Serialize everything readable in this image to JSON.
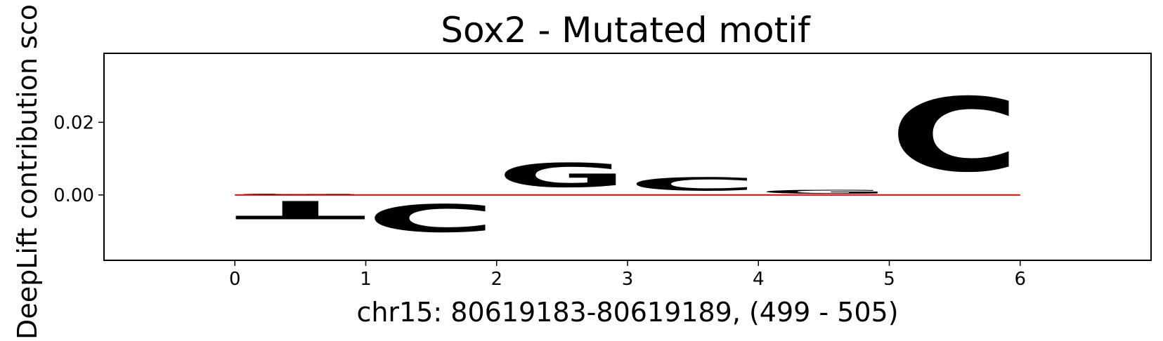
{
  "chart_data": {
    "type": "sequence-logo",
    "title": "Sox2 - Mutated motif",
    "xlabel": "chr15: 80619183-80619189, (499 - 505)",
    "ylabel": "DeepLift contribution sco",
    "xlim": [
      -1,
      7
    ],
    "ylim": [
      -0.018,
      0.039
    ],
    "x_ticks": [
      "0",
      "1",
      "2",
      "3",
      "4",
      "5",
      "6"
    ],
    "y_ticks": [
      "0.00",
      "0.02"
    ],
    "colors": {
      "A": "#ff0000",
      "C": "#0000ff",
      "G": "#ffa500",
      "T": "#ff0000"
    },
    "positions": [
      {
        "x": 0,
        "letters": [
          {
            "base": "T",
            "value": -0.0081
          },
          {
            "base": "G",
            "value": 0.0004
          }
        ]
      },
      {
        "x": 1,
        "letters": [
          {
            "base": "C",
            "value": -0.0123
          }
        ]
      },
      {
        "x": 2,
        "letters": [
          {
            "base": "G",
            "value": 0.0107
          }
        ]
      },
      {
        "x": 3,
        "letters": [
          {
            "base": "C",
            "value": 0.0059
          }
        ]
      },
      {
        "x": 4,
        "letters": [
          {
            "base": "G",
            "value": 0.0017
          }
        ]
      },
      {
        "x": 5,
        "letters": [
          {
            "base": "C",
            "value": 0.0327
          }
        ]
      }
    ]
  }
}
